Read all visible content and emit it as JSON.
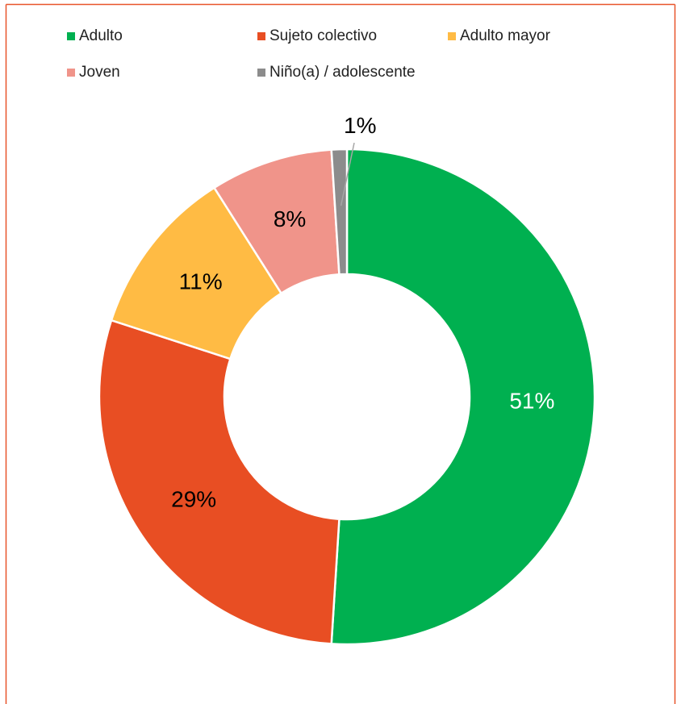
{
  "chart_data": {
    "type": "donut",
    "categories": [
      "Adulto",
      "Sujeto colectivo",
      "Adulto mayor",
      "Joven",
      "Niño(a) / adolescente"
    ],
    "values": [
      51,
      29,
      11,
      8,
      1
    ],
    "value_labels": [
      "51%",
      "29%",
      "11%",
      "8%",
      "1%"
    ],
    "colors": [
      "#00b050",
      "#e84e23",
      "#ffbb44",
      "#f0948a",
      "#8c8c8c"
    ],
    "label_colors": [
      "#ffffff",
      "#000000",
      "#000000",
      "#000000",
      "#000000"
    ],
    "legend": "top"
  }
}
